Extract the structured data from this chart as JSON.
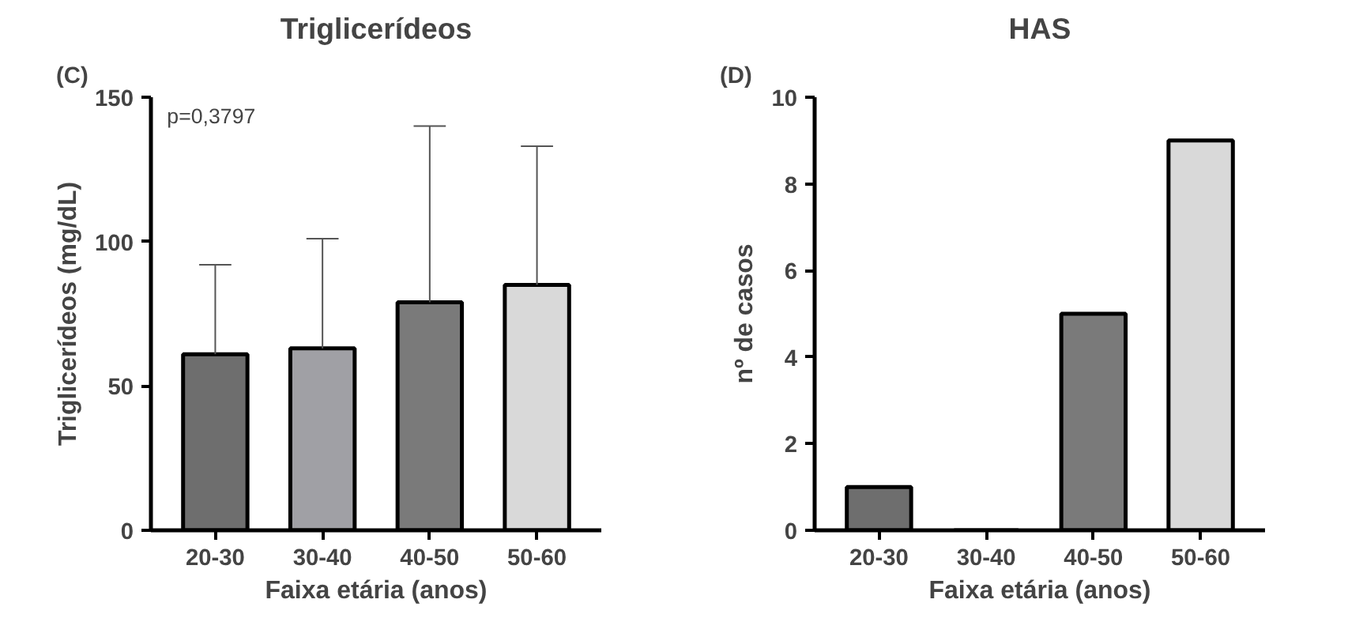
{
  "chart_data": [
    {
      "type": "bar",
      "title": "Triglicerídeos",
      "xlabel": "Faixa etária (anos)",
      "ylabel": "Triglicerídeos (mg/dL)",
      "annotations": [
        "(C)",
        "p=0,3797"
      ],
      "categories": [
        "20-30",
        "30-40",
        "40-50",
        "50-60"
      ],
      "values": [
        61,
        63,
        79,
        85
      ],
      "colors": [
        "#6e6e6e",
        "#a0a0a5",
        "#7a7a7a",
        "#d9d9d9"
      ],
      "errors": [
        [
          61,
          92
        ],
        [
          63,
          101
        ],
        [
          79,
          140
        ],
        [
          85,
          133
        ]
      ],
      "ylim": [
        0,
        150
      ],
      "yticks": [
        0,
        50,
        100,
        150
      ],
      "grid": false
    },
    {
      "type": "bar",
      "title": "HAS",
      "xlabel": "Faixa etária (anos)",
      "ylabel": "nº de casos",
      "annotations": [
        "(D)"
      ],
      "categories": [
        "20-30",
        "30-40",
        "40-50",
        "50-60"
      ],
      "values": [
        1,
        0,
        5,
        9
      ],
      "colors": [
        "#6e6e6e",
        "#a0a0a5",
        "#7a7a7a",
        "#d9d9d9"
      ],
      "ylim": [
        0,
        10
      ],
      "yticks": [
        0,
        2,
        4,
        6,
        8,
        10
      ],
      "grid": false
    }
  ]
}
